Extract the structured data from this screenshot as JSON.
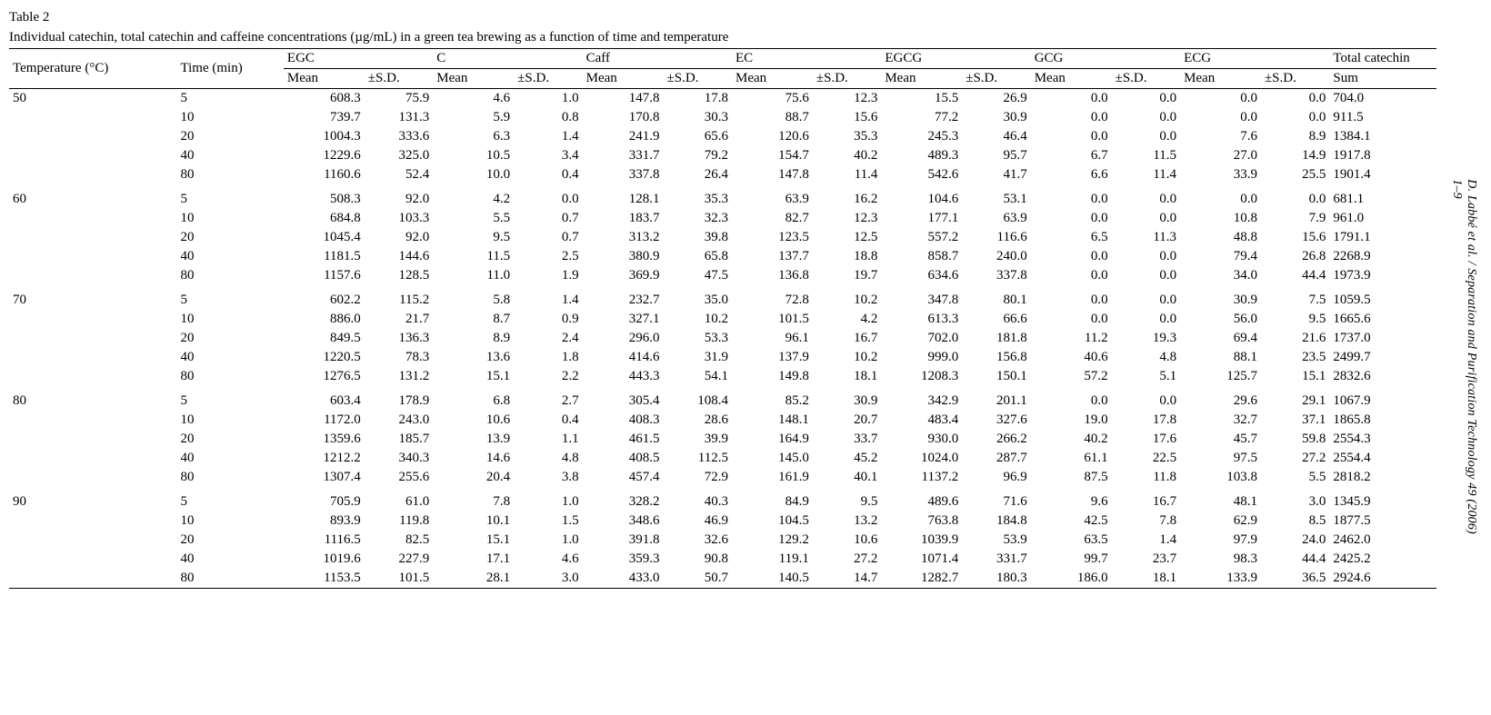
{
  "citation": "D. Labbé et al. / Separation and Purification Technology 49 (2006) 1–9",
  "caption": {
    "label": "Table 2",
    "text": "Individual catechin, total catechin and caffeine concentrations (µg/mL) in a green tea brewing as a function of time and temperature"
  },
  "style": {
    "font_family": "Times New Roman",
    "body_fontsize_pt": 11,
    "caption_fontsize_pt": 11,
    "rule_color": "#000000",
    "background": "#ffffff",
    "text_color": "#000000"
  },
  "table": {
    "row_headers": [
      "Temperature (°C)",
      "Time (min)"
    ],
    "compounds": [
      "EGC",
      "C",
      "Caff",
      "EC",
      "EGCG",
      "GCG",
      "ECG"
    ],
    "sub_headers": [
      "Mean",
      "±S.D."
    ],
    "total_header": "Total catechin",
    "total_sub": "Sum",
    "groups": [
      {
        "temp": "50",
        "rows": [
          {
            "time": "5",
            "v": [
              [
                "608.3",
                "75.9"
              ],
              [
                "4.6",
                "1.0"
              ],
              [
                "147.8",
                "17.8"
              ],
              [
                "75.6",
                "12.3"
              ],
              [
                "15.5",
                "26.9"
              ],
              [
                "0.0",
                "0.0"
              ],
              [
                "0.0",
                "0.0"
              ]
            ],
            "sum": "704.0"
          },
          {
            "time": "10",
            "v": [
              [
                "739.7",
                "131.3"
              ],
              [
                "5.9",
                "0.8"
              ],
              [
                "170.8",
                "30.3"
              ],
              [
                "88.7",
                "15.6"
              ],
              [
                "77.2",
                "30.9"
              ],
              [
                "0.0",
                "0.0"
              ],
              [
                "0.0",
                "0.0"
              ]
            ],
            "sum": "911.5"
          },
          {
            "time": "20",
            "v": [
              [
                "1004.3",
                "333.6"
              ],
              [
                "6.3",
                "1.4"
              ],
              [
                "241.9",
                "65.6"
              ],
              [
                "120.6",
                "35.3"
              ],
              [
                "245.3",
                "46.4"
              ],
              [
                "0.0",
                "0.0"
              ],
              [
                "7.6",
                "8.9"
              ]
            ],
            "sum": "1384.1"
          },
          {
            "time": "40",
            "v": [
              [
                "1229.6",
                "325.0"
              ],
              [
                "10.5",
                "3.4"
              ],
              [
                "331.7",
                "79.2"
              ],
              [
                "154.7",
                "40.2"
              ],
              [
                "489.3",
                "95.7"
              ],
              [
                "6.7",
                "11.5"
              ],
              [
                "27.0",
                "14.9"
              ]
            ],
            "sum": "1917.8"
          },
          {
            "time": "80",
            "v": [
              [
                "1160.6",
                "52.4"
              ],
              [
                "10.0",
                "0.4"
              ],
              [
                "337.8",
                "26.4"
              ],
              [
                "147.8",
                "11.4"
              ],
              [
                "542.6",
                "41.7"
              ],
              [
                "6.6",
                "11.4"
              ],
              [
                "33.9",
                "25.5"
              ]
            ],
            "sum": "1901.4"
          }
        ]
      },
      {
        "temp": "60",
        "rows": [
          {
            "time": "5",
            "v": [
              [
                "508.3",
                "92.0"
              ],
              [
                "4.2",
                "0.0"
              ],
              [
                "128.1",
                "35.3"
              ],
              [
                "63.9",
                "16.2"
              ],
              [
                "104.6",
                "53.1"
              ],
              [
                "0.0",
                "0.0"
              ],
              [
                "0.0",
                "0.0"
              ]
            ],
            "sum": "681.1"
          },
          {
            "time": "10",
            "v": [
              [
                "684.8",
                "103.3"
              ],
              [
                "5.5",
                "0.7"
              ],
              [
                "183.7",
                "32.3"
              ],
              [
                "82.7",
                "12.3"
              ],
              [
                "177.1",
                "63.9"
              ],
              [
                "0.0",
                "0.0"
              ],
              [
                "10.8",
                "7.9"
              ]
            ],
            "sum": "961.0"
          },
          {
            "time": "20",
            "v": [
              [
                "1045.4",
                "92.0"
              ],
              [
                "9.5",
                "0.7"
              ],
              [
                "313.2",
                "39.8"
              ],
              [
                "123.5",
                "12.5"
              ],
              [
                "557.2",
                "116.6"
              ],
              [
                "6.5",
                "11.3"
              ],
              [
                "48.8",
                "15.6"
              ]
            ],
            "sum": "1791.1"
          },
          {
            "time": "40",
            "v": [
              [
                "1181.5",
                "144.6"
              ],
              [
                "11.5",
                "2.5"
              ],
              [
                "380.9",
                "65.8"
              ],
              [
                "137.7",
                "18.8"
              ],
              [
                "858.7",
                "240.0"
              ],
              [
                "0.0",
                "0.0"
              ],
              [
                "79.4",
                "26.8"
              ]
            ],
            "sum": "2268.9"
          },
          {
            "time": "80",
            "v": [
              [
                "1157.6",
                "128.5"
              ],
              [
                "11.0",
                "1.9"
              ],
              [
                "369.9",
                "47.5"
              ],
              [
                "136.8",
                "19.7"
              ],
              [
                "634.6",
                "337.8"
              ],
              [
                "0.0",
                "0.0"
              ],
              [
                "34.0",
                "44.4"
              ]
            ],
            "sum": "1973.9"
          }
        ]
      },
      {
        "temp": "70",
        "rows": [
          {
            "time": "5",
            "v": [
              [
                "602.2",
                "115.2"
              ],
              [
                "5.8",
                "1.4"
              ],
              [
                "232.7",
                "35.0"
              ],
              [
                "72.8",
                "10.2"
              ],
              [
                "347.8",
                "80.1"
              ],
              [
                "0.0",
                "0.0"
              ],
              [
                "30.9",
                "7.5"
              ]
            ],
            "sum": "1059.5"
          },
          {
            "time": "10",
            "v": [
              [
                "886.0",
                "21.7"
              ],
              [
                "8.7",
                "0.9"
              ],
              [
                "327.1",
                "10.2"
              ],
              [
                "101.5",
                "4.2"
              ],
              [
                "613.3",
                "66.6"
              ],
              [
                "0.0",
                "0.0"
              ],
              [
                "56.0",
                "9.5"
              ]
            ],
            "sum": "1665.6"
          },
          {
            "time": "20",
            "v": [
              [
                "849.5",
                "136.3"
              ],
              [
                "8.9",
                "2.4"
              ],
              [
                "296.0",
                "53.3"
              ],
              [
                "96.1",
                "16.7"
              ],
              [
                "702.0",
                "181.8"
              ],
              [
                "11.2",
                "19.3"
              ],
              [
                "69.4",
                "21.6"
              ]
            ],
            "sum": "1737.0"
          },
          {
            "time": "40",
            "v": [
              [
                "1220.5",
                "78.3"
              ],
              [
                "13.6",
                "1.8"
              ],
              [
                "414.6",
                "31.9"
              ],
              [
                "137.9",
                "10.2"
              ],
              [
                "999.0",
                "156.8"
              ],
              [
                "40.6",
                "4.8"
              ],
              [
                "88.1",
                "23.5"
              ]
            ],
            "sum": "2499.7"
          },
          {
            "time": "80",
            "v": [
              [
                "1276.5",
                "131.2"
              ],
              [
                "15.1",
                "2.2"
              ],
              [
                "443.3",
                "54.1"
              ],
              [
                "149.8",
                "18.1"
              ],
              [
                "1208.3",
                "150.1"
              ],
              [
                "57.2",
                "5.1"
              ],
              [
                "125.7",
                "15.1"
              ]
            ],
            "sum": "2832.6"
          }
        ]
      },
      {
        "temp": "80",
        "rows": [
          {
            "time": "5",
            "v": [
              [
                "603.4",
                "178.9"
              ],
              [
                "6.8",
                "2.7"
              ],
              [
                "305.4",
                "108.4"
              ],
              [
                "85.2",
                "30.9"
              ],
              [
                "342.9",
                "201.1"
              ],
              [
                "0.0",
                "0.0"
              ],
              [
                "29.6",
                "29.1"
              ]
            ],
            "sum": "1067.9"
          },
          {
            "time": "10",
            "v": [
              [
                "1172.0",
                "243.0"
              ],
              [
                "10.6",
                "0.4"
              ],
              [
                "408.3",
                "28.6"
              ],
              [
                "148.1",
                "20.7"
              ],
              [
                "483.4",
                "327.6"
              ],
              [
                "19.0",
                "17.8"
              ],
              [
                "32.7",
                "37.1"
              ]
            ],
            "sum": "1865.8"
          },
          {
            "time": "20",
            "v": [
              [
                "1359.6",
                "185.7"
              ],
              [
                "13.9",
                "1.1"
              ],
              [
                "461.5",
                "39.9"
              ],
              [
                "164.9",
                "33.7"
              ],
              [
                "930.0",
                "266.2"
              ],
              [
                "40.2",
                "17.6"
              ],
              [
                "45.7",
                "59.8"
              ]
            ],
            "sum": "2554.3"
          },
          {
            "time": "40",
            "v": [
              [
                "1212.2",
                "340.3"
              ],
              [
                "14.6",
                "4.8"
              ],
              [
                "408.5",
                "112.5"
              ],
              [
                "145.0",
                "45.2"
              ],
              [
                "1024.0",
                "287.7"
              ],
              [
                "61.1",
                "22.5"
              ],
              [
                "97.5",
                "27.2"
              ]
            ],
            "sum": "2554.4"
          },
          {
            "time": "80",
            "v": [
              [
                "1307.4",
                "255.6"
              ],
              [
                "20.4",
                "3.8"
              ],
              [
                "457.4",
                "72.9"
              ],
              [
                "161.9",
                "40.1"
              ],
              [
                "1137.2",
                "96.9"
              ],
              [
                "87.5",
                "11.8"
              ],
              [
                "103.8",
                "5.5"
              ]
            ],
            "sum": "2818.2"
          }
        ]
      },
      {
        "temp": "90",
        "rows": [
          {
            "time": "5",
            "v": [
              [
                "705.9",
                "61.0"
              ],
              [
                "7.8",
                "1.0"
              ],
              [
                "328.2",
                "40.3"
              ],
              [
                "84.9",
                "9.5"
              ],
              [
                "489.6",
                "71.6"
              ],
              [
                "9.6",
                "16.7"
              ],
              [
                "48.1",
                "3.0"
              ]
            ],
            "sum": "1345.9"
          },
          {
            "time": "10",
            "v": [
              [
                "893.9",
                "119.8"
              ],
              [
                "10.1",
                "1.5"
              ],
              [
                "348.6",
                "46.9"
              ],
              [
                "104.5",
                "13.2"
              ],
              [
                "763.8",
                "184.8"
              ],
              [
                "42.5",
                "7.8"
              ],
              [
                "62.9",
                "8.5"
              ]
            ],
            "sum": "1877.5"
          },
          {
            "time": "20",
            "v": [
              [
                "1116.5",
                "82.5"
              ],
              [
                "15.1",
                "1.0"
              ],
              [
                "391.8",
                "32.6"
              ],
              [
                "129.2",
                "10.6"
              ],
              [
                "1039.9",
                "53.9"
              ],
              [
                "63.5",
                "1.4"
              ],
              [
                "97.9",
                "24.0"
              ]
            ],
            "sum": "2462.0"
          },
          {
            "time": "40",
            "v": [
              [
                "1019.6",
                "227.9"
              ],
              [
                "17.1",
                "4.6"
              ],
              [
                "359.3",
                "90.8"
              ],
              [
                "119.1",
                "27.2"
              ],
              [
                "1071.4",
                "331.7"
              ],
              [
                "99.7",
                "23.7"
              ],
              [
                "98.3",
                "44.4"
              ]
            ],
            "sum": "2425.2"
          },
          {
            "time": "80",
            "v": [
              [
                "1153.5",
                "101.5"
              ],
              [
                "28.1",
                "3.0"
              ],
              [
                "433.0",
                "50.7"
              ],
              [
                "140.5",
                "14.7"
              ],
              [
                "1282.7",
                "180.3"
              ],
              [
                "186.0",
                "18.1"
              ],
              [
                "133.9",
                "36.5"
              ]
            ],
            "sum": "2924.6"
          }
        ]
      }
    ]
  }
}
